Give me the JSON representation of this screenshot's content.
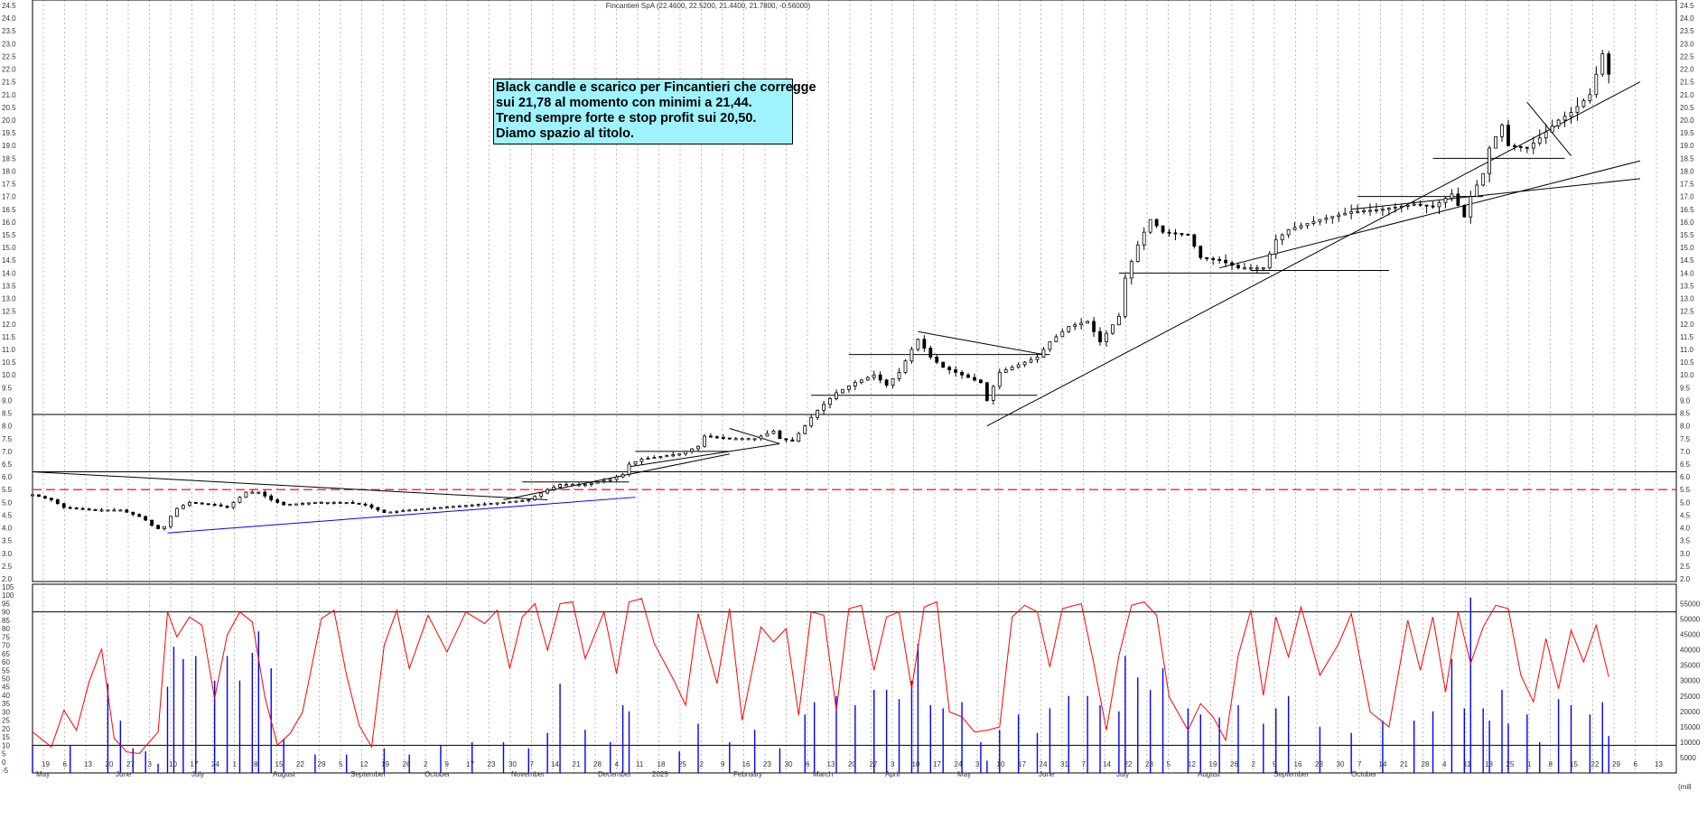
{
  "header": {
    "title": "Fincantieri SpA (22.4600, 22.5200, 21.4400, 21.7800, -0.56000)"
  },
  "annotation": {
    "lines": [
      "Black candle e scarico per Fincantieri che corregge",
      "sui 21,78 al momento con minimi a 21,44.",
      "Trend sempre forte e stop profit sui 20,50.",
      "Diamo spazio al titolo."
    ]
  },
  "colors": {
    "candle": "#000000",
    "resistance_dashed": "#ff3333",
    "oscillator": "#ff0000",
    "volume": "#0000ff",
    "support_line": "#0000ff",
    "grid": "#bbbbbb"
  },
  "chart_data": {
    "type": "candlestick",
    "title": "Fincantieri SpA (22.4600, 22.5200, 21.4400, 21.7800, -0.56000)",
    "price_axis": {
      "min": 2.0,
      "max": 24.5,
      "step": 0.5,
      "ticks": [
        "2.0",
        "2.5",
        "3.0",
        "3.5",
        "4.0",
        "4.5",
        "5.0",
        "5.5",
        "6.0",
        "6.5",
        "7.0",
        "7.5",
        "8.0",
        "8.5",
        "9.0",
        "9.5",
        "10.0",
        "10.5",
        "11.0",
        "11.5",
        "12.0",
        "12.5",
        "13.0",
        "13.5",
        "14.0",
        "14.5",
        "15.0",
        "15.5",
        "16.0",
        "16.5",
        "17.0",
        "17.5",
        "18.0",
        "18.5",
        "19.0",
        "19.5",
        "20.0",
        "20.5",
        "21.0",
        "21.5",
        "22.0",
        "22.5",
        "23.0",
        "23.5",
        "24.0",
        "24.5"
      ]
    },
    "oscillator_axis": {
      "min": -5,
      "max": 105,
      "ticks": [
        "-5",
        "0",
        "5",
        "10",
        "15",
        "20",
        "25",
        "30",
        "35",
        "40",
        "45",
        "50",
        "55",
        "60",
        "65",
        "70",
        "75",
        "80",
        "85",
        "90",
        "95",
        "100",
        "105"
      ],
      "levels": [
        10,
        90
      ]
    },
    "volume_axis": {
      "min": 0,
      "max": 57500,
      "ticks": [
        "5000",
        "10000",
        "15000",
        "20000",
        "25000",
        "30000",
        "35000",
        "40000",
        "45000",
        "50000",
        "55000"
      ],
      "unit": "(mill"
    },
    "date_ticks": [
      "19",
      "6",
      "13",
      "20",
      "27",
      "3",
      "10",
      "17",
      "24",
      "1",
      "8",
      "15",
      "22",
      "29",
      "5",
      "12",
      "19",
      "26",
      "2",
      "9",
      "17",
      "23",
      "30",
      "7",
      "14",
      "21",
      "28",
      "4",
      "11",
      "18",
      "25",
      "2",
      "9",
      "16",
      "23",
      "30",
      "6",
      "13",
      "20",
      "27",
      "3",
      "10",
      "17",
      "24",
      "3",
      "10",
      "17",
      "24",
      "31",
      "7",
      "14",
      "22",
      "28",
      "5",
      "12",
      "19",
      "26",
      "2",
      "9",
      "16",
      "23",
      "30",
      "7",
      "14",
      "21",
      "28",
      "4",
      "11",
      "18",
      "25",
      "1",
      "8",
      "15",
      "22",
      "29",
      "6",
      "13"
    ],
    "month_labels": [
      "May",
      "June",
      "July",
      "August",
      "September",
      "October",
      "November",
      "December",
      "2025",
      "February",
      "March",
      "April",
      "May",
      "June",
      "July",
      "August",
      "September",
      "October"
    ],
    "horizontal_levels": [
      5.5,
      6.2,
      8.45
    ],
    "dashed_levels": [
      5.5
    ],
    "price_path": [
      [
        0,
        5.3
      ],
      [
        6,
        5.1
      ],
      [
        10,
        4.8
      ],
      [
        20,
        4.7
      ],
      [
        28,
        4.7
      ],
      [
        35,
        4.4
      ],
      [
        38,
        4.1
      ],
      [
        41,
        3.9
      ],
      [
        43,
        4.2
      ],
      [
        45,
        4.7
      ],
      [
        50,
        5.0
      ],
      [
        58,
        4.9
      ],
      [
        62,
        4.8
      ],
      [
        66,
        5.2
      ],
      [
        68,
        5.4
      ],
      [
        72,
        5.4
      ],
      [
        76,
        5.1
      ],
      [
        80,
        4.9
      ],
      [
        90,
        5.0
      ],
      [
        100,
        5.0
      ],
      [
        106,
        4.9
      ],
      [
        112,
        4.6
      ],
      [
        120,
        4.7
      ],
      [
        130,
        4.8
      ],
      [
        140,
        4.9
      ],
      [
        150,
        5.0
      ],
      [
        158,
        5.1
      ],
      [
        164,
        5.5
      ],
      [
        168,
        5.7
      ],
      [
        176,
        5.7
      ],
      [
        184,
        5.9
      ],
      [
        188,
        6.1
      ],
      [
        190,
        6.5
      ],
      [
        194,
        6.7
      ],
      [
        206,
        6.9
      ],
      [
        212,
        7.2
      ],
      [
        214,
        7.6
      ],
      [
        222,
        7.5
      ],
      [
        230,
        7.5
      ],
      [
        236,
        7.8
      ],
      [
        238,
        7.5
      ],
      [
        242,
        7.4
      ],
      [
        246,
        8.0
      ],
      [
        249,
        8.5
      ],
      [
        256,
        9.3
      ],
      [
        262,
        9.7
      ],
      [
        268,
        10.0
      ],
      [
        272,
        9.6
      ],
      [
        276,
        10.1
      ],
      [
        280,
        11.0
      ],
      [
        282,
        11.4
      ],
      [
        286,
        10.7
      ],
      [
        290,
        10.3
      ],
      [
        296,
        10.0
      ],
      [
        302,
        9.7
      ],
      [
        304,
        9.0
      ],
      [
        308,
        10.1
      ],
      [
        314,
        10.4
      ],
      [
        320,
        10.7
      ],
      [
        324,
        11.3
      ],
      [
        330,
        11.9
      ],
      [
        336,
        12.1
      ],
      [
        340,
        11.3
      ],
      [
        346,
        12.3
      ],
      [
        348,
        13.8
      ],
      [
        352,
        15.1
      ],
      [
        356,
        16.1
      ],
      [
        360,
        15.6
      ],
      [
        368,
        15.5
      ],
      [
        372,
        14.6
      ],
      [
        378,
        14.5
      ],
      [
        384,
        14.2
      ],
      [
        392,
        14.2
      ],
      [
        396,
        15.3
      ],
      [
        400,
        15.7
      ],
      [
        410,
        16.1
      ],
      [
        420,
        16.4
      ],
      [
        430,
        16.5
      ],
      [
        440,
        16.7
      ],
      [
        446,
        16.6
      ],
      [
        452,
        17.1
      ],
      [
        456,
        16.2
      ],
      [
        458,
        17.0
      ],
      [
        462,
        17.9
      ],
      [
        464,
        18.9
      ],
      [
        468,
        19.8
      ],
      [
        470,
        19.0
      ],
      [
        476,
        18.9
      ],
      [
        480,
        19.3
      ],
      [
        486,
        20.0
      ],
      [
        490,
        20.3
      ],
      [
        496,
        21.0
      ],
      [
        500,
        22.6
      ],
      [
        502,
        21.8
      ]
    ],
    "volume_bars": [
      [
        0,
        9000
      ],
      [
        12,
        9000
      ],
      [
        24,
        29000
      ],
      [
        28,
        17000
      ],
      [
        32,
        8000
      ],
      [
        36,
        7000
      ],
      [
        40,
        3000
      ],
      [
        43,
        28000
      ],
      [
        45,
        41000
      ],
      [
        48,
        37000
      ],
      [
        52,
        38000
      ],
      [
        58,
        30000
      ],
      [
        62,
        38000
      ],
      [
        66,
        30000
      ],
      [
        70,
        39000
      ],
      [
        72,
        46000
      ],
      [
        76,
        34000
      ],
      [
        80,
        11000
      ],
      [
        90,
        6000
      ],
      [
        100,
        6000
      ],
      [
        112,
        8000
      ],
      [
        120,
        6000
      ],
      [
        130,
        9000
      ],
      [
        140,
        10000
      ],
      [
        150,
        10000
      ],
      [
        158,
        8000
      ],
      [
        164,
        13000
      ],
      [
        168,
        29000
      ],
      [
        176,
        14000
      ],
      [
        184,
        10000
      ],
      [
        188,
        22000
      ],
      [
        190,
        20000
      ],
      [
        206,
        7000
      ],
      [
        212,
        16000
      ],
      [
        222,
        10000
      ],
      [
        230,
        14000
      ],
      [
        238,
        8000
      ],
      [
        246,
        19000
      ],
      [
        249,
        23000
      ],
      [
        256,
        25000
      ],
      [
        262,
        22000
      ],
      [
        268,
        27000
      ],
      [
        272,
        27000
      ],
      [
        276,
        24000
      ],
      [
        280,
        30000
      ],
      [
        282,
        42000
      ],
      [
        286,
        22000
      ],
      [
        290,
        21000
      ],
      [
        296,
        23000
      ],
      [
        302,
        10000
      ],
      [
        304,
        4000
      ],
      [
        308,
        14000
      ],
      [
        314,
        19000
      ],
      [
        320,
        13000
      ],
      [
        324,
        21000
      ],
      [
        330,
        25000
      ],
      [
        336,
        25000
      ],
      [
        340,
        22000
      ],
      [
        346,
        20000
      ],
      [
        348,
        38000
      ],
      [
        352,
        31000
      ],
      [
        356,
        27000
      ],
      [
        360,
        34000
      ],
      [
        368,
        21000
      ],
      [
        372,
        19000
      ],
      [
        378,
        18000
      ],
      [
        384,
        22000
      ],
      [
        392,
        16000
      ],
      [
        396,
        21000
      ],
      [
        400,
        25000
      ],
      [
        410,
        15000
      ],
      [
        420,
        13000
      ],
      [
        430,
        17000
      ],
      [
        440,
        17000
      ],
      [
        446,
        20000
      ],
      [
        452,
        37000
      ],
      [
        456,
        21000
      ],
      [
        458,
        57000
      ],
      [
        462,
        21000
      ],
      [
        464,
        17000
      ],
      [
        468,
        27000
      ],
      [
        470,
        16000
      ],
      [
        476,
        19000
      ],
      [
        480,
        10000
      ],
      [
        486,
        24000
      ],
      [
        490,
        22000
      ],
      [
        496,
        19000
      ],
      [
        500,
        23000
      ],
      [
        502,
        12000
      ]
    ],
    "oscillator_values": [
      [
        0,
        18
      ],
      [
        6,
        9
      ],
      [
        10,
        31
      ],
      [
        14,
        19
      ],
      [
        18,
        48
      ],
      [
        22,
        68
      ],
      [
        26,
        14
      ],
      [
        30,
        6
      ],
      [
        34,
        5
      ],
      [
        40,
        18
      ],
      [
        43,
        90
      ],
      [
        46,
        75
      ],
      [
        50,
        87
      ],
      [
        54,
        82
      ],
      [
        58,
        38
      ],
      [
        62,
        76
      ],
      [
        66,
        90
      ],
      [
        70,
        84
      ],
      [
        74,
        39
      ],
      [
        78,
        10
      ],
      [
        82,
        17
      ],
      [
        86,
        30
      ],
      [
        92,
        86
      ],
      [
        96,
        91
      ],
      [
        100,
        52
      ],
      [
        104,
        22
      ],
      [
        108,
        9
      ],
      [
        112,
        70
      ],
      [
        116,
        91
      ],
      [
        120,
        56
      ],
      [
        126,
        88
      ],
      [
        132,
        66
      ],
      [
        138,
        90
      ],
      [
        144,
        83
      ],
      [
        148,
        91
      ],
      [
        152,
        56
      ],
      [
        156,
        87
      ],
      [
        160,
        95
      ],
      [
        164,
        67
      ],
      [
        168,
        95
      ],
      [
        172,
        96
      ],
      [
        176,
        62
      ],
      [
        182,
        90
      ],
      [
        186,
        53
      ],
      [
        190,
        96
      ],
      [
        194,
        98
      ],
      [
        198,
        71
      ],
      [
        204,
        50
      ],
      [
        208,
        34
      ],
      [
        212,
        89
      ],
      [
        218,
        47
      ],
      [
        222,
        92
      ],
      [
        226,
        25
      ],
      [
        232,
        81
      ],
      [
        236,
        72
      ],
      [
        240,
        80
      ],
      [
        244,
        28
      ],
      [
        248,
        90
      ],
      [
        252,
        88
      ],
      [
        256,
        31
      ],
      [
        260,
        92
      ],
      [
        264,
        94
      ],
      [
        268,
        55
      ],
      [
        272,
        87
      ],
      [
        276,
        90
      ],
      [
        280,
        44
      ],
      [
        284,
        93
      ],
      [
        288,
        96
      ],
      [
        292,
        30
      ],
      [
        296,
        27
      ],
      [
        300,
        18
      ],
      [
        304,
        19
      ],
      [
        308,
        21
      ],
      [
        312,
        87
      ],
      [
        316,
        94
      ],
      [
        320,
        90
      ],
      [
        324,
        57
      ],
      [
        328,
        92
      ],
      [
        334,
        95
      ],
      [
        338,
        59
      ],
      [
        342,
        19
      ],
      [
        346,
        64
      ],
      [
        350,
        94
      ],
      [
        354,
        96
      ],
      [
        358,
        88
      ],
      [
        362,
        39
      ],
      [
        368,
        19
      ],
      [
        372,
        35
      ],
      [
        376,
        27
      ],
      [
        380,
        13
      ],
      [
        384,
        64
      ],
      [
        388,
        91
      ],
      [
        392,
        40
      ],
      [
        396,
        87
      ],
      [
        400,
        63
      ],
      [
        404,
        93
      ],
      [
        410,
        52
      ],
      [
        416,
        71
      ],
      [
        420,
        89
      ],
      [
        426,
        30
      ],
      [
        432,
        21
      ],
      [
        438,
        85
      ],
      [
        442,
        55
      ],
      [
        446,
        87
      ],
      [
        450,
        42
      ],
      [
        454,
        90
      ],
      [
        458,
        59
      ],
      [
        462,
        81
      ],
      [
        466,
        94
      ],
      [
        470,
        92
      ],
      [
        474,
        52
      ],
      [
        478,
        36
      ],
      [
        482,
        74
      ],
      [
        486,
        44
      ],
      [
        490,
        79
      ],
      [
        494,
        60
      ],
      [
        498,
        82
      ],
      [
        502,
        51
      ]
    ],
    "trend_lines": [
      [
        [
          0,
          6.2
        ],
        [
          164,
          5.1
        ]
      ],
      [
        [
          190,
          6.4
        ],
        [
          238,
          7.3
        ]
      ],
      [
        [
          150,
          5.1
        ],
        [
          222,
          6.9
        ]
      ],
      [
        [
          222,
          7.9
        ],
        [
          238,
          7.3
        ]
      ],
      [
        [
          282,
          11.7
        ],
        [
          322,
          10.8
        ]
      ],
      [
        [
          304,
          8.0
        ],
        [
          512,
          21.5
        ]
      ],
      [
        [
          378,
          14.2
        ],
        [
          512,
          18.4
        ]
      ],
      [
        [
          420,
          16.5
        ],
        [
          512,
          17.7
        ]
      ],
      [
        [
          476,
          20.7
        ],
        [
          490,
          18.6
        ]
      ]
    ],
    "blue_support_line": [
      [
        43,
        3.8
      ],
      [
        192,
        5.2
      ]
    ],
    "level_segments": [
      [
        156,
        5.8,
        190
      ],
      [
        192,
        7.0,
        222
      ],
      [
        248,
        9.2,
        320
      ],
      [
        260,
        10.8,
        324
      ],
      [
        346,
        14.0,
        394
      ],
      [
        388,
        14.1,
        432
      ],
      [
        422,
        17.0,
        462
      ],
      [
        446,
        18.5,
        488
      ]
    ]
  }
}
